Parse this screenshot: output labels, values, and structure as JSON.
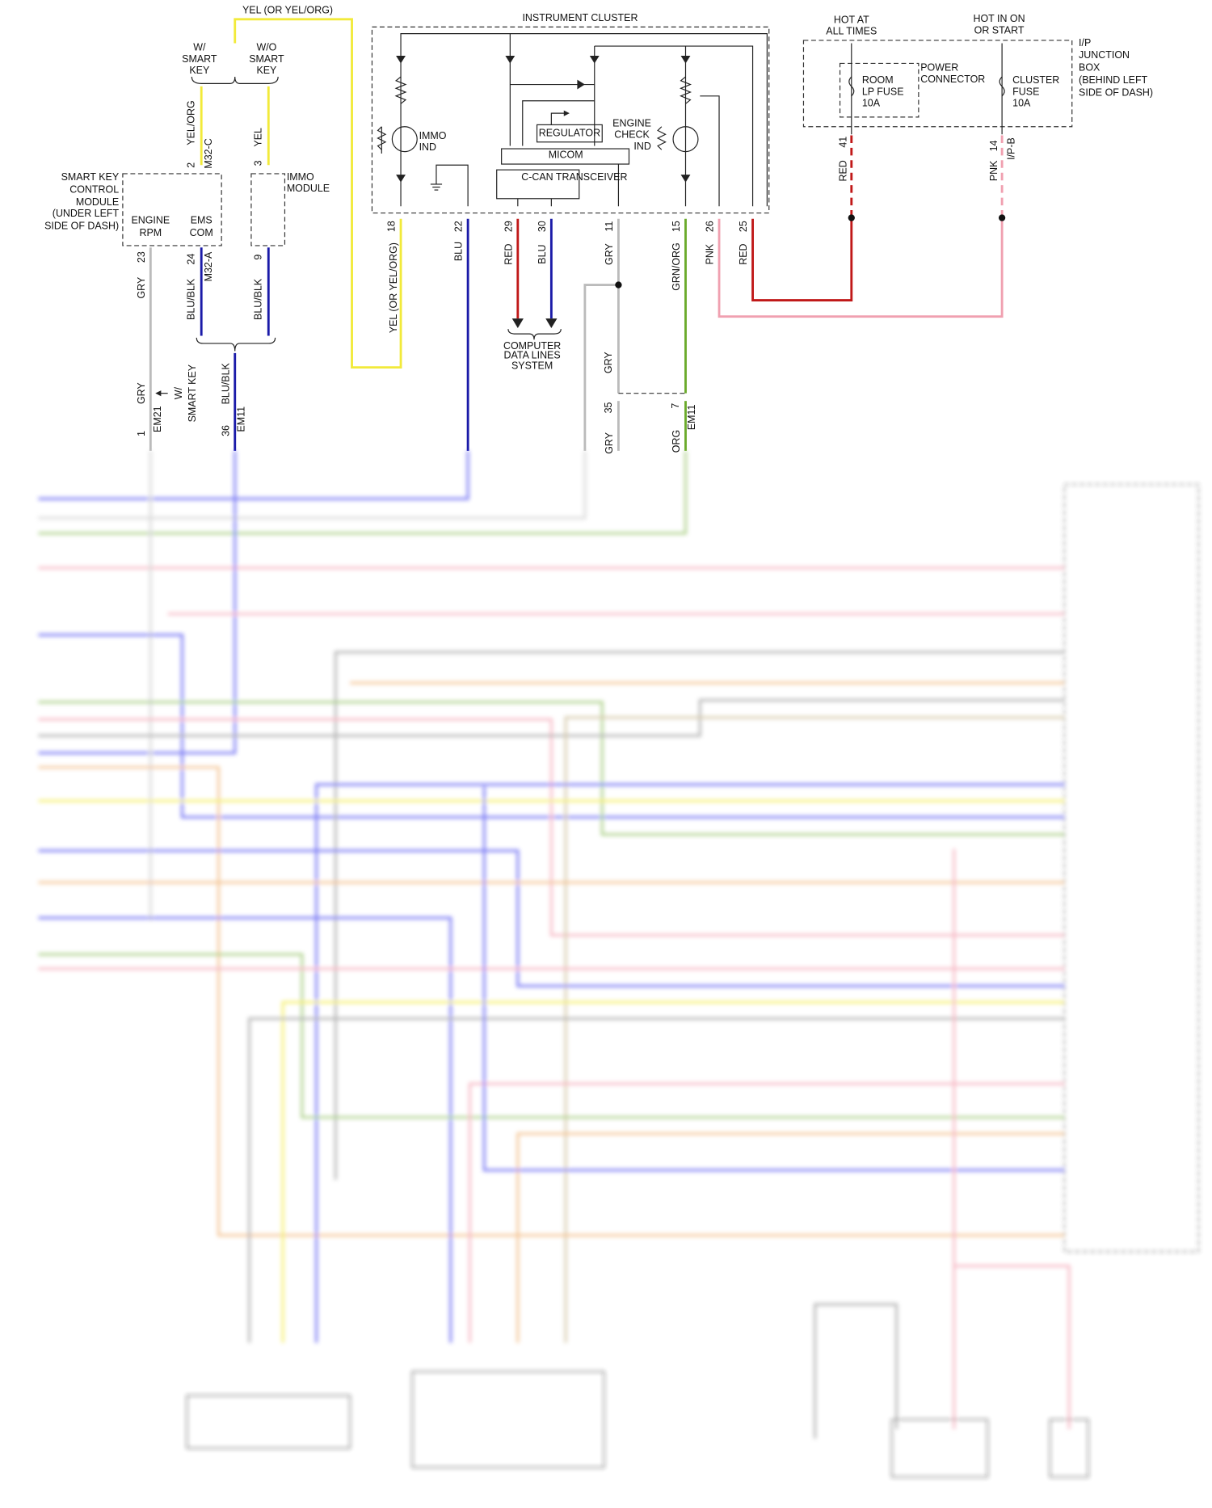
{
  "top_labels": {
    "cluster_feed": "YEL (OR YEL/ORG)",
    "instrument_cluster": "INSTRUMENT CLUSTER"
  },
  "power": {
    "hot_at_all_times": [
      "HOT AT",
      "ALL TIMES"
    ],
    "hot_in_on": [
      "HOT IN ON",
      "OR START"
    ],
    "junction_box": [
      "I/P",
      "JUNCTION",
      "BOX",
      "(BEHIND LEFT",
      "SIDE OF DASH)"
    ],
    "room_fuse": [
      "ROOM",
      "LP FUSE",
      "10A"
    ],
    "power_connector": [
      "POWER",
      "CONNECTOR"
    ],
    "cluster_fuse": [
      "CLUSTER",
      "FUSE",
      "10A"
    ]
  },
  "smart_key": {
    "with": [
      "W/",
      "SMART",
      "KEY"
    ],
    "without": [
      "W/O",
      "SMART",
      "KEY"
    ],
    "module": [
      "SMART KEY",
      "CONTROL",
      "MODULE",
      "(UNDER LEFT",
      "SIDE OF DASH)"
    ],
    "engine_rpm": [
      "ENGINE",
      "RPM"
    ],
    "ems_com": [
      "EMS",
      "COM"
    ],
    "immo_module": [
      "IMMO",
      "MODULE"
    ],
    "w_smart_key_branch": [
      "W/",
      "SMART KEY"
    ]
  },
  "cluster": {
    "immo_ind": [
      "IMMO",
      "IND"
    ],
    "regulator": "REGULATOR",
    "engine_check": [
      "ENGINE",
      "CHECK",
      "IND"
    ],
    "micom": "MICOM",
    "ccan": "C-CAN TRANSCEIVER"
  },
  "computer_data_lines": [
    "COMPUTER",
    "DATA LINES",
    "SYSTEM"
  ],
  "pins": {
    "skm_2": "2",
    "skm_2_wire": "YEL/ORG",
    "m32c": "M32-C",
    "immo_3": "3",
    "immo_3_wire": "YEL",
    "jb_41": "41",
    "jb_41_wire": "RED",
    "jb_14": "14",
    "jb_14_wire": "PNK",
    "ipb": "I/P-B",
    "c18": "18",
    "c18_wire": "YEL (OR YEL/ORG)",
    "c22": "22",
    "c22_wire": "BLU",
    "c29": "29",
    "c29_wire": "RED",
    "c30": "30",
    "c30_wire": "BLU",
    "c11": "11",
    "c11_wire": "GRY",
    "c15": "15",
    "c15_wire": "GRN/ORG",
    "c26": "26",
    "c26_wire": "PNK",
    "c25": "25",
    "c25_wire": "RED",
    "skm_23": "23",
    "skm_23_wire": "GRY",
    "skm_24": "24",
    "m32a": "M32-A",
    "skm_24_wire": "BLU/BLK",
    "immo_9": "9",
    "immo_9_wire": "BLU/BLK",
    "gry_mid": "GRY",
    "em11_35": "35",
    "em11_7": "7",
    "em11_a": "EM11",
    "gry_low": "GRY",
    "blublk_low": "BLU/BLK",
    "em21_1": "1",
    "em21": "EM21",
    "em11_36": "36",
    "em11_b": "EM11",
    "gry_cut": "GRY",
    "grnorg_cut": "ORG"
  }
}
